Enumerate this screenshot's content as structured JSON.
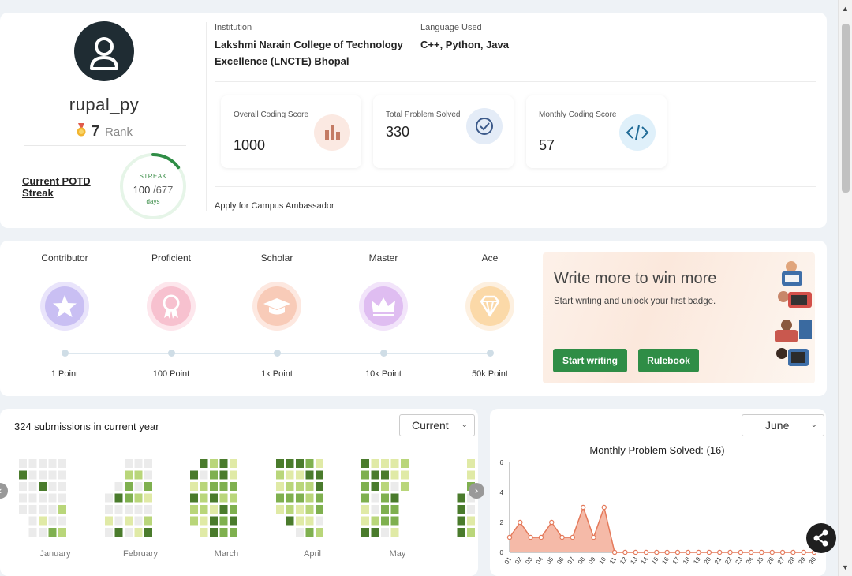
{
  "profile": {
    "username": "rupal_py",
    "rank_value": "7",
    "rank_label": "Rank",
    "potd_label": "Current POTD Streak",
    "streak": {
      "label": "STREAK",
      "current": "100",
      "total": "/677",
      "unit": "days",
      "progress": 0.148
    }
  },
  "info": {
    "institution_label": "Institution",
    "institution_line1": "Lakshmi Narain College of Technology",
    "institution_line2": "Excellence (LNCTE) Bhopal",
    "language_label": "Language Used",
    "language_value": "C++, Python, Java"
  },
  "stats": [
    {
      "label": "Overall Coding Score",
      "value": "1000",
      "icon": "bar-chart-icon",
      "color": "#fbe9e2",
      "icon_color": "#c47b64"
    },
    {
      "label": "Total Problem Solved",
      "value": "330",
      "icon": "check-circle-icon",
      "color": "#e4ecf7",
      "icon_color": "#3c5a8a"
    },
    {
      "label": "Monthly Coding Score",
      "value": "57",
      "icon": "code-icon",
      "color": "#dff0fa",
      "icon_color": "#1e6a96"
    }
  ],
  "apply_link": "Apply for Campus Ambassador",
  "badges": [
    {
      "name": "Contributor",
      "points": "1 Point",
      "icon": "star-icon",
      "ring": "#e9e4fb",
      "fill": "#c9bff3"
    },
    {
      "name": "Proficient",
      "points": "100 Point",
      "icon": "ribbon-icon",
      "ring": "#fde6ec",
      "fill": "#f7c1cf"
    },
    {
      "name": "Scholar",
      "points": "1k Point",
      "icon": "graduation-cap-icon",
      "ring": "#fde8e0",
      "fill": "#f8cbb8"
    },
    {
      "name": "Master",
      "points": "10k Point",
      "icon": "crown-icon",
      "ring": "#f2e4fa",
      "fill": "#dfbdf1"
    },
    {
      "name": "Ace",
      "points": "50k Point",
      "icon": "diamond-icon",
      "ring": "#fdf0e0",
      "fill": "#fbd9a8"
    }
  ],
  "promo": {
    "title": "Write more to win more",
    "subtitle": "Start writing and unlock your first badge.",
    "start_button": "Start writing",
    "rulebook_button": "Rulebook"
  },
  "submissions": {
    "title": "324 submissions in current year",
    "select_value": "Current",
    "months": [
      "January",
      "February",
      "March",
      "April",
      "May"
    ],
    "colors": {
      "empty": "#ebebeb",
      "l1": "#e0eaa6",
      "l2": "#b9d67a",
      "l3": "#7fb04f",
      "l4": "#4a7b2c"
    }
  },
  "chart_select": "June",
  "chart_data": {
    "type": "area",
    "title": "Monthly Problem Solved: (16)",
    "x": [
      "01",
      "02",
      "03",
      "04",
      "05",
      "06",
      "07",
      "08",
      "09",
      "10",
      "11",
      "12",
      "13",
      "14",
      "15",
      "16",
      "17",
      "18",
      "19",
      "20",
      "21",
      "22",
      "23",
      "24",
      "25",
      "26",
      "27",
      "28",
      "29",
      "30"
    ],
    "values": [
      1,
      2,
      1,
      1,
      2,
      1,
      1,
      3,
      1,
      3,
      0,
      0,
      0,
      0,
      0,
      0,
      0,
      0,
      0,
      0,
      0,
      0,
      0,
      0,
      0,
      0,
      0,
      0,
      0,
      0
    ],
    "yticks": [
      0,
      2,
      4,
      6
    ],
    "ylim": [
      0,
      6
    ],
    "color": "#f0957a"
  }
}
